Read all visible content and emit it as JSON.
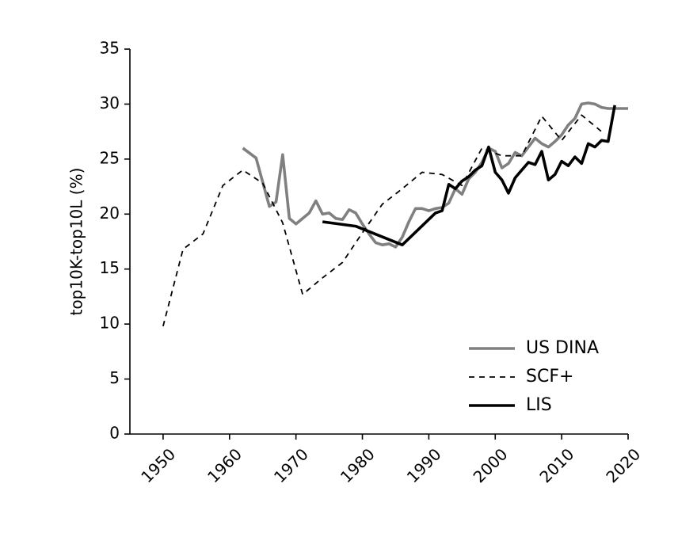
{
  "chart_data": {
    "type": "line",
    "title": "",
    "xlabel": "",
    "ylabel": "top10K-top10L (%)",
    "xlim": [
      1945,
      2020
    ],
    "ylim": [
      0,
      35
    ],
    "xticks": [
      1950,
      1960,
      1970,
      1980,
      1990,
      2000,
      2010,
      2020
    ],
    "yticks": [
      0,
      5,
      10,
      15,
      20,
      25,
      30,
      35
    ],
    "grid": false,
    "legend_position": "lower-right",
    "series": [
      {
        "name": "US DINA",
        "color": "#808080",
        "style": "solid",
        "points": [
          [
            1962,
            26.0
          ],
          [
            1964,
            25.1
          ],
          [
            1966,
            20.7
          ],
          [
            1967,
            21.1
          ],
          [
            1968,
            25.4
          ],
          [
            1969,
            19.6
          ],
          [
            1970,
            19.1
          ],
          [
            1971,
            19.6
          ],
          [
            1972,
            20.1
          ],
          [
            1973,
            21.2
          ],
          [
            1974,
            20.0
          ],
          [
            1975,
            20.1
          ],
          [
            1976,
            19.6
          ],
          [
            1977,
            19.5
          ],
          [
            1978,
            20.4
          ],
          [
            1979,
            20.1
          ],
          [
            1980,
            19.1
          ],
          [
            1981,
            18.2
          ],
          [
            1982,
            17.4
          ],
          [
            1983,
            17.2
          ],
          [
            1984,
            17.3
          ],
          [
            1985,
            17.0
          ],
          [
            1986,
            17.9
          ],
          [
            1987,
            19.3
          ],
          [
            1988,
            20.5
          ],
          [
            1989,
            20.5
          ],
          [
            1990,
            20.3
          ],
          [
            1991,
            20.5
          ],
          [
            1992,
            20.6
          ],
          [
            1993,
            21.0
          ],
          [
            1994,
            22.3
          ],
          [
            1995,
            21.8
          ],
          [
            1996,
            23.2
          ],
          [
            1997,
            23.8
          ],
          [
            1998,
            24.7
          ],
          [
            1999,
            26.0
          ],
          [
            2000,
            25.7
          ],
          [
            2001,
            24.2
          ],
          [
            2002,
            24.6
          ],
          [
            2003,
            25.6
          ],
          [
            2004,
            25.3
          ],
          [
            2005,
            26.1
          ],
          [
            2006,
            26.9
          ],
          [
            2007,
            26.4
          ],
          [
            2008,
            26.1
          ],
          [
            2009,
            26.6
          ],
          [
            2010,
            27.2
          ],
          [
            2011,
            28.1
          ],
          [
            2012,
            28.7
          ],
          [
            2013,
            30.0
          ],
          [
            2014,
            30.1
          ],
          [
            2015,
            30.0
          ],
          [
            2016,
            29.7
          ],
          [
            2017,
            29.6
          ],
          [
            2018,
            29.6
          ],
          [
            2019,
            29.6
          ],
          [
            2020,
            29.6
          ]
        ]
      },
      {
        "name": "SCF+",
        "color": "#000000",
        "style": "dashed",
        "points": [
          [
            1950,
            9.8
          ],
          [
            1953,
            16.8
          ],
          [
            1956,
            18.2
          ],
          [
            1959,
            22.6
          ],
          [
            1962,
            24.0
          ],
          [
            1965,
            22.8
          ],
          [
            1968,
            19.2
          ],
          [
            1971,
            12.7
          ],
          [
            1974,
            14.2
          ],
          [
            1977,
            15.6
          ],
          [
            1980,
            18.3
          ],
          [
            1983,
            20.9
          ],
          [
            1986,
            22.3
          ],
          [
            1989,
            23.8
          ],
          [
            1992,
            23.6
          ],
          [
            1995,
            22.6
          ],
          [
            1998,
            26.0
          ],
          [
            2001,
            25.3
          ],
          [
            2004,
            25.3
          ],
          [
            2007,
            28.9
          ],
          [
            2010,
            26.7
          ],
          [
            2013,
            29.0
          ],
          [
            2016,
            27.5
          ]
        ]
      },
      {
        "name": "LIS",
        "color": "#000000",
        "style": "solid-thick",
        "points": [
          [
            1974,
            19.3
          ],
          [
            1979,
            18.9
          ],
          [
            1986,
            17.2
          ],
          [
            1991,
            20.1
          ],
          [
            1992,
            20.3
          ],
          [
            1993,
            22.7
          ],
          [
            1994,
            22.3
          ],
          [
            1995,
            23.0
          ],
          [
            1996,
            23.4
          ],
          [
            1997,
            24.0
          ],
          [
            1998,
            24.4
          ],
          [
            1999,
            26.1
          ],
          [
            2000,
            23.8
          ],
          [
            2001,
            23.1
          ],
          [
            2002,
            21.9
          ],
          [
            2003,
            23.3
          ],
          [
            2004,
            24.0
          ],
          [
            2005,
            24.7
          ],
          [
            2006,
            24.5
          ],
          [
            2007,
            25.7
          ],
          [
            2008,
            23.1
          ],
          [
            2009,
            23.6
          ],
          [
            2010,
            24.8
          ],
          [
            2011,
            24.4
          ],
          [
            2012,
            25.2
          ],
          [
            2013,
            24.6
          ],
          [
            2014,
            26.4
          ],
          [
            2015,
            26.1
          ],
          [
            2016,
            26.7
          ],
          [
            2017,
            26.6
          ],
          [
            2018,
            29.9
          ]
        ]
      }
    ]
  }
}
